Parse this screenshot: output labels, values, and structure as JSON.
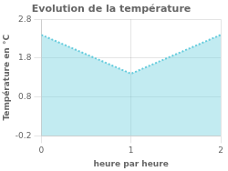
{
  "chart_data": {
    "type": "area",
    "title": "Evolution de la température",
    "xlabel": "heure par heure",
    "ylabel": "Température en °C",
    "x": [
      0,
      1,
      2
    ],
    "values": [
      2.4,
      1.4,
      2.4
    ],
    "xlim": [
      0,
      2
    ],
    "ylim": [
      -0.2,
      2.8
    ],
    "xticks": [
      0,
      1,
      2
    ],
    "yticks": [
      -0.2,
      0.8,
      1.8,
      2.8
    ],
    "grid": true,
    "color": "#66ccdd",
    "line_style": "dotted"
  }
}
